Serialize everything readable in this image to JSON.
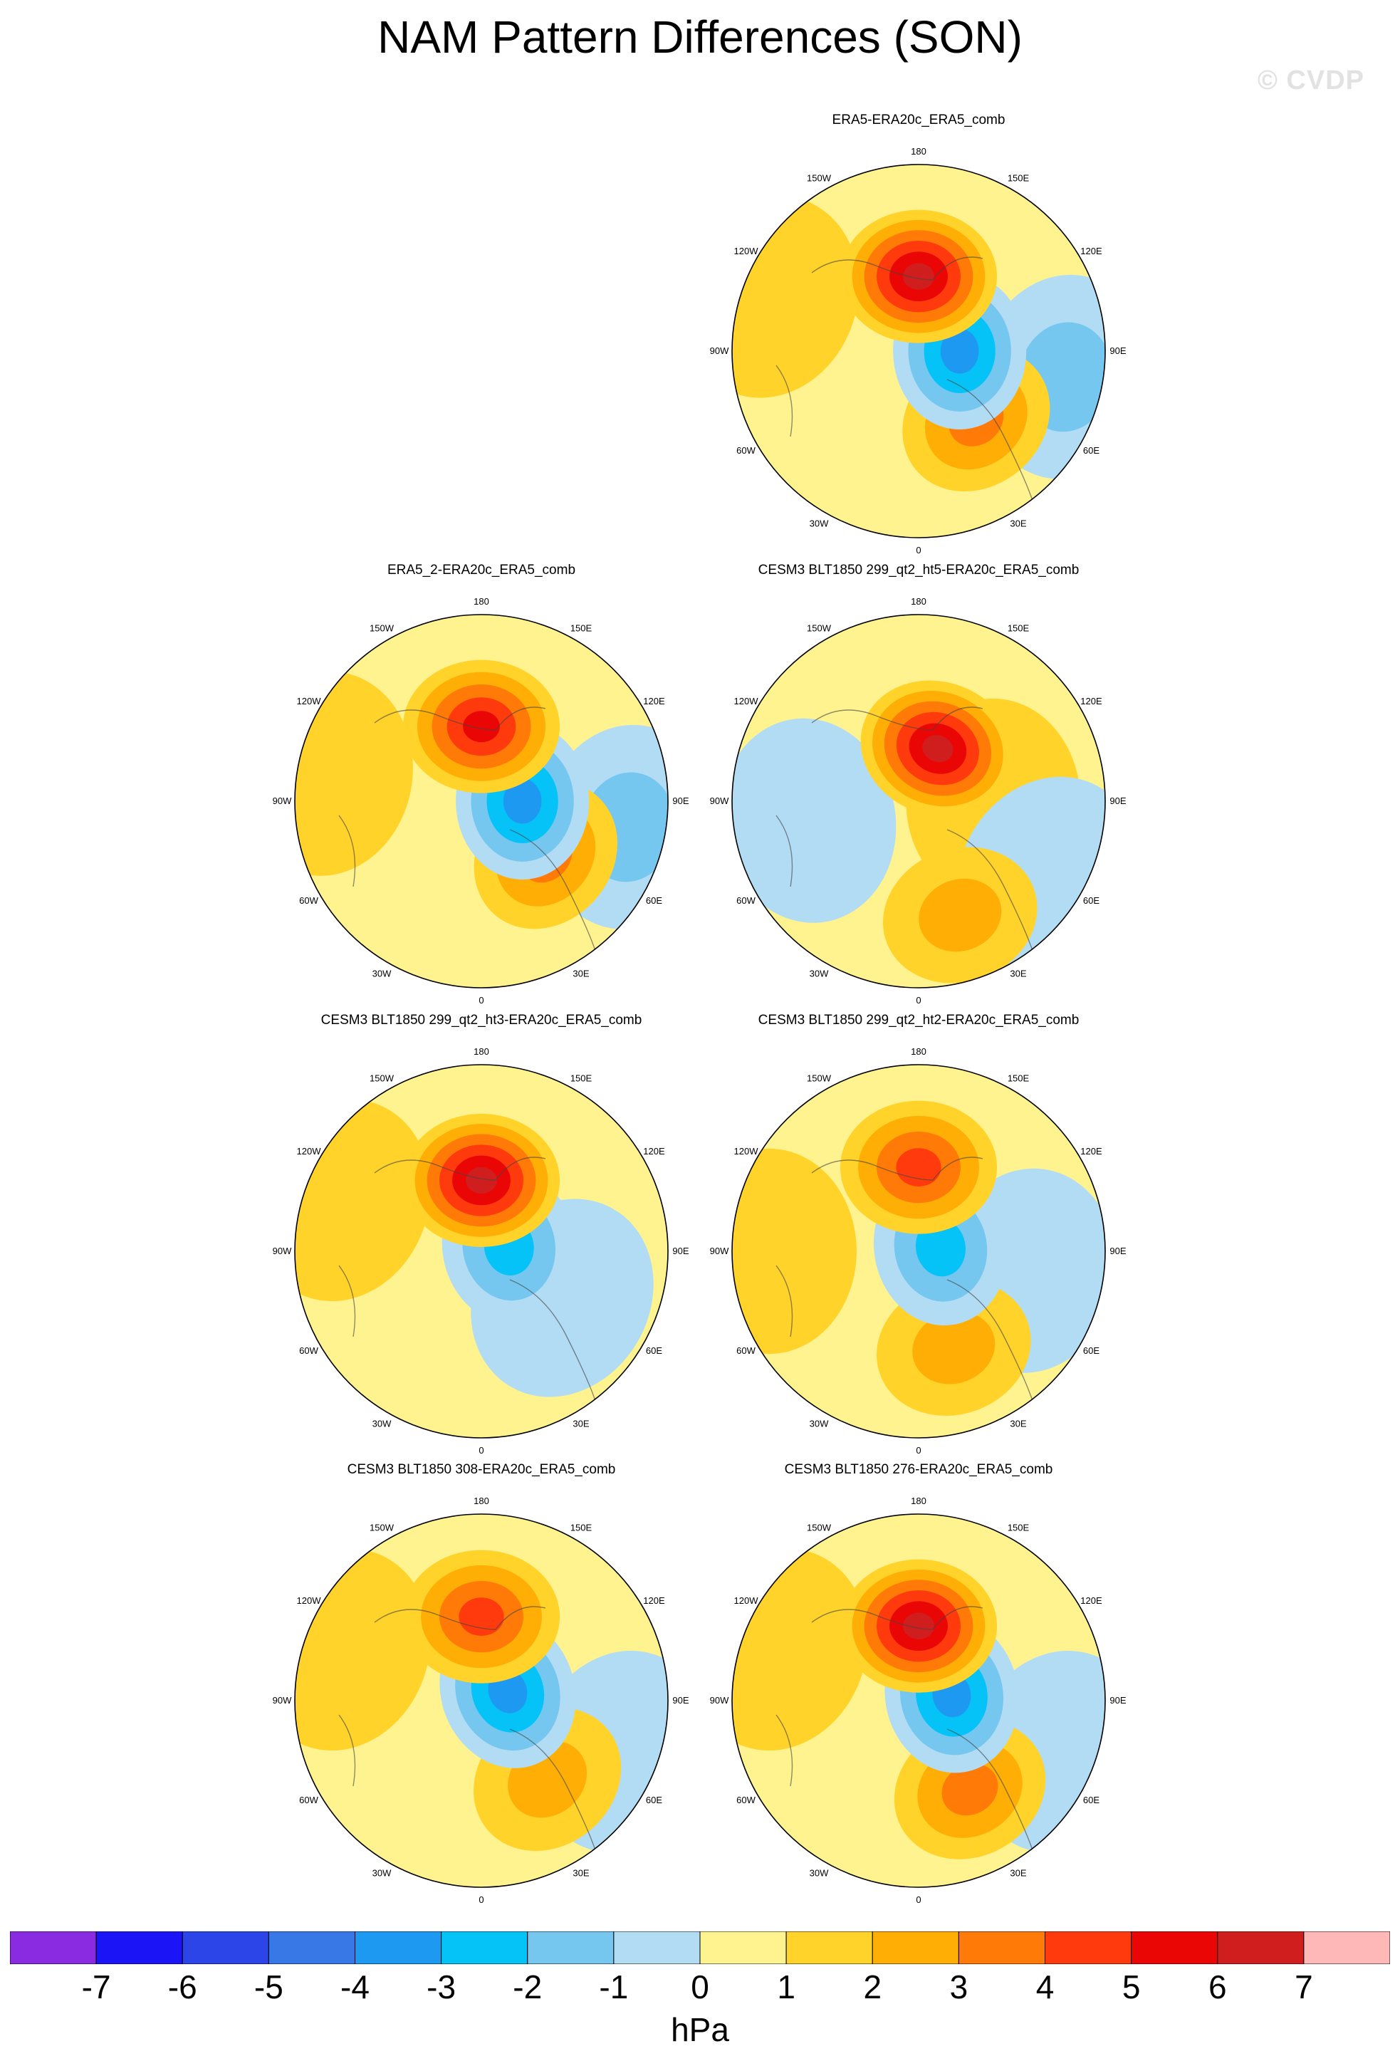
{
  "title": "NAM Pattern Differences (SON)",
  "watermark": "© CVDP",
  "longitude_labels": [
    "180",
    "150E",
    "120E",
    "90E",
    "60E",
    "30E",
    "0",
    "30W",
    "60W",
    "90W",
    "120W",
    "150W"
  ],
  "chart_data": {
    "type": "heatmap",
    "projection": "north-polar-stereographic",
    "variable": "NAM pattern difference",
    "units": "hPa",
    "panels": [
      {
        "title": "ERA5-ERA20c_ERA5_comb",
        "blobs": [
          {
            "lon": 180,
            "r": 0.4,
            "value": 5.5
          },
          {
            "lon": 90,
            "r": 0.22,
            "value": -3.5
          },
          {
            "lon": 40,
            "r": 0.48,
            "value": 2.5
          },
          {
            "lon": 80,
            "r": 0.8,
            "value": -1.2
          },
          {
            "lon": 250,
            "r": 0.85,
            "value": 0.7
          }
        ]
      },
      {
        "title": "ERA5_2-ERA20c_ERA5_comb",
        "blobs": [
          {
            "lon": 180,
            "r": 0.4,
            "value": 5
          },
          {
            "lon": 90,
            "r": 0.22,
            "value": -3.5
          },
          {
            "lon": 50,
            "r": 0.45,
            "value": 2.5
          },
          {
            "lon": 80,
            "r": 0.8,
            "value": -1.2
          },
          {
            "lon": 260,
            "r": 0.85,
            "value": 0.7
          }
        ]
      },
      {
        "title": "CESM3 BLT1850 299_qt2_ht5-ERA20c_ERA5_comb",
        "blobs": [
          {
            "lon": 160,
            "r": 0.3,
            "value": 5.5
          },
          {
            "lon": 20,
            "r": 0.65,
            "value": 1.5
          },
          {
            "lon": 90,
            "r": 0.4,
            "value": 0.8
          },
          {
            "lon": 280,
            "r": 0.6,
            "value": -1
          },
          {
            "lon": 60,
            "r": 0.8,
            "value": -0.8
          }
        ]
      },
      {
        "title": "CESM3 BLT1850 299_qt2_ht3-ERA20c_ERA5_comb",
        "blobs": [
          {
            "lon": 180,
            "r": 0.38,
            "value": 5.5
          },
          {
            "lon": 100,
            "r": 0.15,
            "value": -3
          },
          {
            "lon": 60,
            "r": 0.5,
            "value": -1
          },
          {
            "lon": 250,
            "r": 0.8,
            "value": 0.6
          }
        ]
      },
      {
        "title": "CESM3 BLT1850 299_qt2_ht2-ERA20c_ERA5_comb",
        "blobs": [
          {
            "lon": 180,
            "r": 0.45,
            "value": 3.5
          },
          {
            "lon": 100,
            "r": 0.12,
            "value": -3
          },
          {
            "lon": 20,
            "r": 0.55,
            "value": 1.5
          },
          {
            "lon": 80,
            "r": 0.6,
            "value": -1
          },
          {
            "lon": 270,
            "r": 0.8,
            "value": 0.6
          }
        ]
      },
      {
        "title": "CESM3 BLT1850 308-ERA20c_ERA5_comb",
        "blobs": [
          {
            "lon": 180,
            "r": 0.45,
            "value": 4
          },
          {
            "lon": 110,
            "r": 0.15,
            "value": -3.5
          },
          {
            "lon": 40,
            "r": 0.55,
            "value": 2
          },
          {
            "lon": 70,
            "r": 0.8,
            "value": -1
          },
          {
            "lon": 250,
            "r": 0.8,
            "value": 0.6
          }
        ]
      },
      {
        "title": "CESM3 BLT1850 276-ERA20c_ERA5_comb",
        "blobs": [
          {
            "lon": 180,
            "r": 0.4,
            "value": 5.5
          },
          {
            "lon": 100,
            "r": 0.18,
            "value": -3.5
          },
          {
            "lon": 30,
            "r": 0.55,
            "value": 3
          },
          {
            "lon": 70,
            "r": 0.8,
            "value": -1
          },
          {
            "lon": 250,
            "r": 0.8,
            "value": 0.6
          }
        ]
      }
    ],
    "colorbar": {
      "ticks": [
        "-7",
        "-6",
        "-5",
        "-4",
        "-3",
        "-2",
        "-1",
        "0",
        "1",
        "2",
        "3",
        "4",
        "5",
        "6",
        "7"
      ],
      "label": "hPa",
      "colors": [
        "#8a2be2",
        "#1b14f6",
        "#2b45e8",
        "#3877e6",
        "#1e99f2",
        "#06c3f7",
        "#76c7ef",
        "#b2dcf4",
        "#fff38f",
        "#ffd32a",
        "#ffae06",
        "#ff7a06",
        "#ff3a0c",
        "#eb0606",
        "#d01e1e",
        "#ffb8b8"
      ]
    }
  }
}
